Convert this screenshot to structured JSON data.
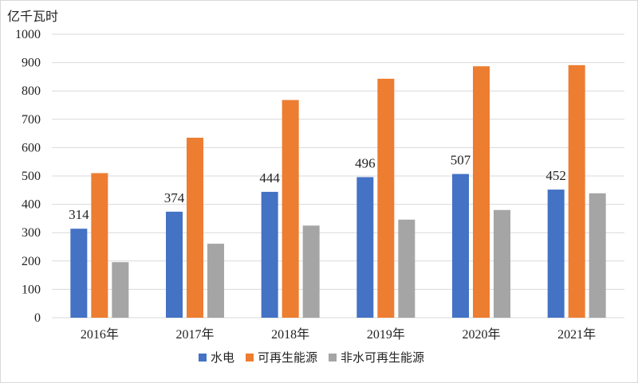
{
  "chart_data": {
    "type": "bar",
    "unit": "亿千瓦时",
    "categories": [
      "2016年",
      "2017年",
      "2018年",
      "2019年",
      "2020年",
      "2021年"
    ],
    "ylim": [
      0,
      1000
    ],
    "yticks": [
      0,
      100,
      200,
      300,
      400,
      500,
      600,
      700,
      800,
      900,
      1000
    ],
    "grid": true,
    "legend_position": "bottom",
    "series": [
      {
        "name": "水电",
        "color": "#4472C4",
        "values": [
          314,
          374,
          444,
          496,
          507,
          452
        ],
        "show_labels": true
      },
      {
        "name": "可再生能源",
        "color": "#ED7D31",
        "values": [
          510,
          635,
          768,
          843,
          887,
          891
        ],
        "show_labels": false
      },
      {
        "name": "非水可再生能源",
        "color": "#A5A5A5",
        "values": [
          196,
          261,
          325,
          346,
          380,
          439
        ],
        "show_labels": false
      }
    ]
  }
}
